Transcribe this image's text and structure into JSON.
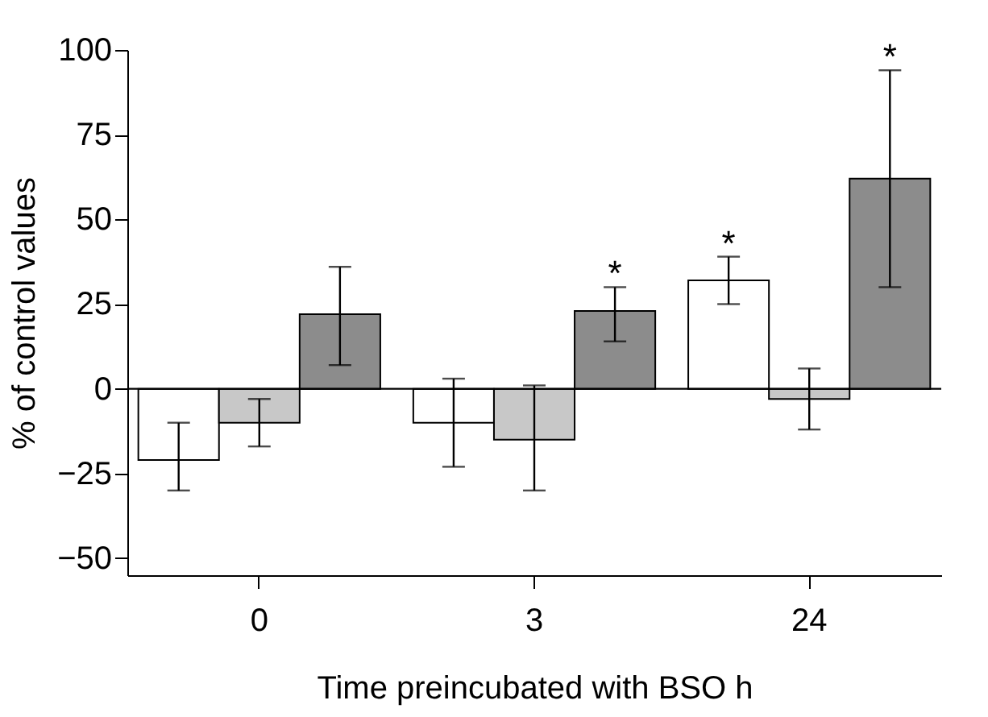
{
  "chart_data": {
    "type": "bar",
    "xlabel": "Time preincubated with BSO  h",
    "ylabel": "% of control values",
    "categories": [
      "0",
      "3",
      "24"
    ],
    "series": [
      {
        "color": "#ffffff",
        "values": [
          -21,
          -10,
          32
        ],
        "errors": [
          [
            -30,
            -10
          ],
          [
            -23,
            3
          ],
          [
            25,
            39
          ]
        ],
        "value_labels": [
          null,
          null,
          "*"
        ]
      },
      {
        "color": "#c8c8c8",
        "values": [
          -10,
          -15,
          -3
        ],
        "errors": [
          [
            -17,
            -3
          ],
          [
            -30,
            1
          ],
          [
            -12,
            6
          ]
        ]
      },
      {
        "color": "#8c8c8c",
        "values": [
          22,
          23,
          62
        ],
        "errors": [
          [
            7,
            36
          ],
          [
            14,
            30
          ],
          [
            30,
            94
          ]
        ],
        "value_labels": [
          null,
          "*",
          "*"
        ]
      }
    ],
    "ylim": [
      -55,
      100
    ],
    "yticks": [
      -50,
      -25,
      0,
      25,
      50,
      75,
      100
    ],
    "ref_lines": [
      {
        "axis": "y",
        "value": 0
      }
    ],
    "grid": false
  }
}
